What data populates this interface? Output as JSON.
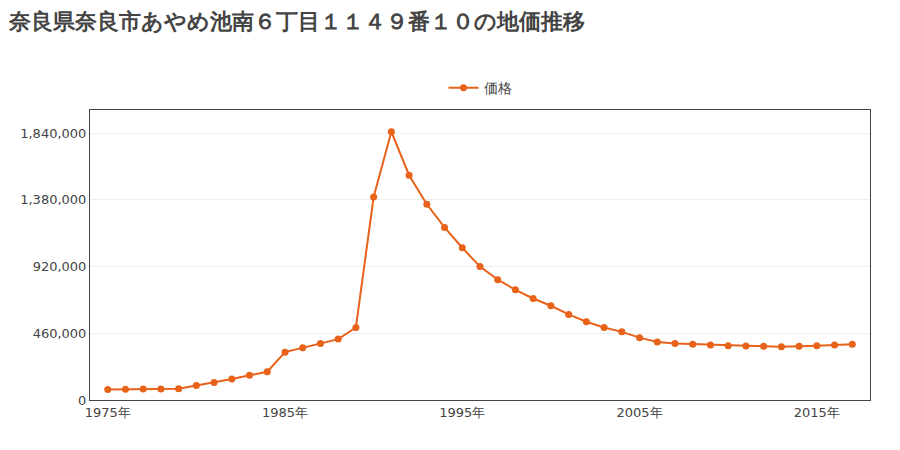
{
  "chart_data": {
    "type": "line",
    "title": "奈良県奈良市あやめ池南６丁目１１４９番１０の地価推移",
    "x": [
      1975,
      1976,
      1977,
      1978,
      1979,
      1980,
      1981,
      1982,
      1983,
      1984,
      1985,
      1986,
      1987,
      1988,
      1989,
      1990,
      1991,
      1992,
      1993,
      1994,
      1995,
      1996,
      1997,
      1998,
      1999,
      2000,
      2001,
      2002,
      2003,
      2004,
      2005,
      2006,
      2007,
      2008,
      2009,
      2010,
      2011,
      2012,
      2013,
      2014,
      2015,
      2016,
      2017
    ],
    "series": [
      {
        "name": "価格",
        "color": "#e8621a",
        "marker": "circle",
        "values": [
          73000,
          75000,
          76000,
          76000,
          77000,
          100000,
          120000,
          145000,
          170000,
          195000,
          330000,
          360000,
          390000,
          420000,
          500000,
          1400000,
          1850000,
          1550000,
          1350000,
          1190000,
          1050000,
          920000,
          830000,
          760000,
          700000,
          650000,
          590000,
          540000,
          500000,
          470000,
          430000,
          400000,
          390000,
          385000,
          380000,
          375000,
          372000,
          370000,
          368000,
          370000,
          375000,
          380000,
          385000
        ]
      }
    ],
    "xlim": [
      1974,
      2018
    ],
    "ylim": [
      0,
      2000000
    ],
    "xticks": [
      {
        "value": 1975,
        "label": "1975年"
      },
      {
        "value": 1985,
        "label": "1985年"
      },
      {
        "value": 1995,
        "label": "1995年"
      },
      {
        "value": 2005,
        "label": "2005年"
      },
      {
        "value": 2015,
        "label": "2015年"
      }
    ],
    "yticks": [
      0,
      {
        "value": 460000,
        "label": "460,000"
      },
      {
        "value": 920000,
        "label": "920,000"
      },
      {
        "value": 1380000,
        "label": "1,380,000"
      },
      {
        "value": 1840000,
        "label": "1,840,000"
      }
    ],
    "grid": "y",
    "legend": "top"
  }
}
